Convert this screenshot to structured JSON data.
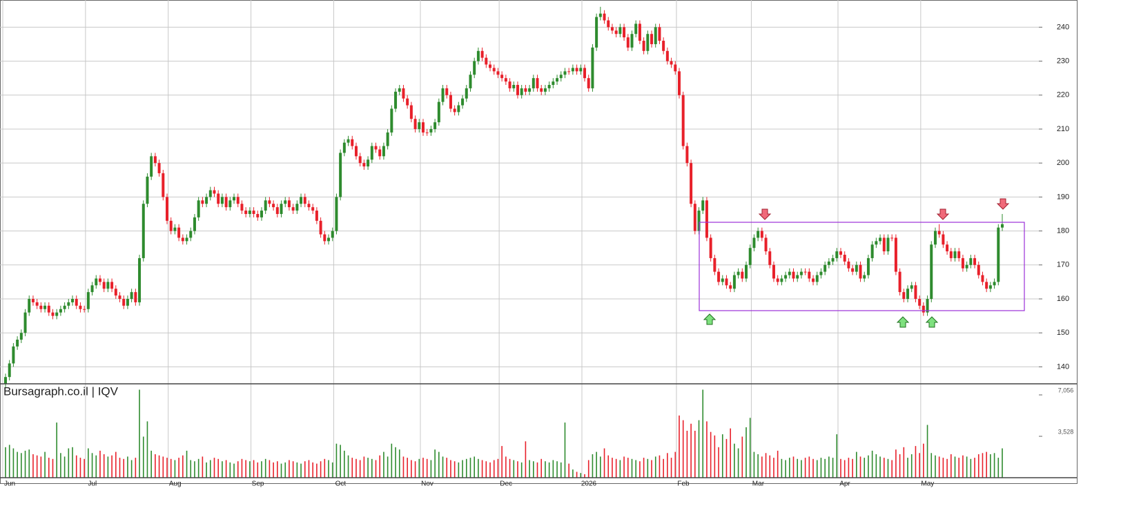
{
  "chart_data": {
    "type": "candlestick",
    "watermark": "Bursagraph.co.il | IQV",
    "ylim": [
      135,
      248
    ],
    "yticks": [
      140,
      150,
      160,
      170,
      180,
      190,
      200,
      210,
      220,
      230,
      240
    ],
    "volume_ylim": [
      0,
      8000
    ],
    "volume_ticks": [
      {
        "value": 3528,
        "label": "3,528"
      },
      {
        "value": 7056,
        "label": "7,056"
      }
    ],
    "xlim": [
      -1,
      262
    ],
    "xticks": [
      {
        "value": 0,
        "label": "Jun"
      },
      {
        "value": 21,
        "label": "Jul"
      },
      {
        "value": 42,
        "label": "Aug"
      },
      {
        "value": 63,
        "label": "Sep"
      },
      {
        "value": 84,
        "label": "Oct"
      },
      {
        "value": 106,
        "label": "Nov"
      },
      {
        "value": 126,
        "label": "Dec"
      },
      {
        "value": 147,
        "label": "2026"
      },
      {
        "value": 171,
        "label": "Feb"
      },
      {
        "value": 190,
        "label": "Mar"
      },
      {
        "value": 212,
        "label": "Apr"
      },
      {
        "value": 233,
        "label": "May"
      }
    ],
    "up_color": "#2e8b2e",
    "down_color": "#e8202a",
    "grid": true,
    "open": [
      135,
      137,
      141,
      146,
      148,
      150,
      156,
      160,
      159,
      158,
      157,
      158,
      156,
      155,
      156,
      157,
      158,
      159,
      160,
      158,
      157,
      157,
      162,
      164,
      166,
      165,
      163,
      165,
      163,
      161,
      160,
      158,
      160,
      162,
      159,
      172,
      188,
      196,
      202,
      200,
      197,
      190,
      183,
      180,
      181,
      178,
      177,
      178,
      180,
      184,
      189,
      188,
      190,
      192,
      191,
      188,
      190,
      187,
      189,
      190,
      188,
      186,
      185,
      186,
      185,
      184,
      186,
      189,
      188,
      187,
      185,
      188,
      189,
      187,
      186,
      188,
      190,
      188,
      187,
      186,
      183,
      179,
      177,
      178,
      180,
      190,
      203,
      206,
      207,
      205,
      202,
      200,
      199,
      201,
      205,
      204,
      202,
      205,
      209,
      216,
      221,
      222,
      219,
      217,
      213,
      210,
      212,
      209,
      209,
      210,
      212,
      218,
      222,
      220,
      216,
      215,
      217,
      219,
      222,
      226,
      230,
      233,
      231,
      229,
      228,
      227,
      226,
      225,
      224,
      222,
      223,
      220,
      222,
      221,
      222,
      225,
      222,
      221,
      222,
      223,
      224,
      225,
      226,
      227,
      227,
      228,
      227,
      228,
      225,
      222,
      234,
      243,
      244,
      242,
      240,
      239,
      238,
      240,
      237,
      234,
      238,
      241,
      236,
      233,
      238,
      235,
      240,
      236,
      233,
      230,
      229,
      227,
      220,
      205,
      200,
      188,
      180,
      186,
      189,
      178,
      172,
      168,
      165,
      166,
      164,
      163,
      167,
      168,
      166,
      170,
      175,
      178,
      180,
      178,
      174,
      170,
      166,
      165,
      166,
      167,
      168,
      166,
      167,
      168,
      168,
      166,
      165,
      167,
      168,
      170,
      171,
      172,
      174,
      173,
      171,
      169,
      168,
      170,
      166,
      167,
      172,
      176,
      177,
      178,
      174,
      178,
      178,
      168,
      162,
      160,
      163,
      164,
      160,
      158,
      156,
      160,
      176,
      180,
      179,
      176,
      174,
      172,
      174,
      172,
      169,
      170,
      172,
      170,
      167,
      165,
      163,
      164,
      165,
      181
    ],
    "high": [
      138,
      142,
      147,
      149,
      151,
      157,
      161,
      161,
      160,
      159,
      159,
      159,
      157,
      157,
      158,
      159,
      160,
      161,
      161,
      159,
      158,
      163,
      165,
      167,
      167,
      166,
      166,
      166,
      164,
      162,
      161,
      161,
      163,
      163,
      173,
      189,
      197,
      203,
      203,
      201,
      198,
      191,
      184,
      182,
      182,
      179,
      179,
      181,
      185,
      190,
      190,
      191,
      193,
      193,
      192,
      191,
      191,
      190,
      191,
      191,
      189,
      187,
      187,
      187,
      186,
      187,
      190,
      190,
      189,
      188,
      189,
      190,
      190,
      188,
      189,
      191,
      191,
      189,
      188,
      187,
      184,
      180,
      179,
      181,
      191,
      204,
      207,
      208,
      208,
      206,
      203,
      201,
      202,
      206,
      206,
      205,
      206,
      210,
      217,
      222,
      223,
      223,
      220,
      218,
      214,
      213,
      213,
      210,
      211,
      213,
      219,
      223,
      223,
      221,
      217,
      218,
      220,
      223,
      227,
      231,
      234,
      234,
      232,
      230,
      229,
      228,
      227,
      226,
      225,
      224,
      224,
      223,
      223,
      223,
      226,
      226,
      223,
      223,
      224,
      225,
      226,
      227,
      228,
      228,
      229,
      229,
      229,
      229,
      226,
      235,
      244,
      246,
      245,
      243,
      241,
      240,
      241,
      241,
      238,
      239,
      242,
      242,
      237,
      239,
      239,
      241,
      241,
      237,
      234,
      231,
      230,
      228,
      221,
      206,
      201,
      189,
      187,
      190,
      190,
      179,
      173,
      169,
      167,
      167,
      165,
      168,
      169,
      169,
      171,
      176,
      179,
      181,
      181,
      179,
      175,
      171,
      167,
      167,
      168,
      169,
      169,
      168,
      169,
      169,
      169,
      167,
      168,
      169,
      171,
      172,
      173,
      175,
      175,
      174,
      172,
      170,
      171,
      171,
      168,
      173,
      177,
      178,
      179,
      179,
      179,
      179,
      179,
      169,
      163,
      164,
      165,
      165,
      161,
      159,
      161,
      177,
      181,
      182,
      180,
      177,
      175,
      175,
      175,
      173,
      171,
      173,
      173,
      171,
      168,
      166,
      165,
      166,
      182,
      185
    ],
    "low": [
      134,
      136,
      140,
      145,
      147,
      149,
      155,
      158,
      157,
      156,
      156,
      155,
      154,
      154,
      155,
      156,
      157,
      158,
      157,
      156,
      156,
      156,
      161,
      163,
      164,
      162,
      162,
      162,
      160,
      159,
      157,
      157,
      159,
      158,
      158,
      171,
      187,
      195,
      199,
      196,
      189,
      182,
      179,
      179,
      177,
      176,
      176,
      177,
      179,
      183,
      187,
      187,
      189,
      190,
      187,
      187,
      186,
      186,
      188,
      187,
      185,
      184,
      184,
      184,
      183,
      183,
      185,
      187,
      186,
      184,
      184,
      187,
      186,
      185,
      185,
      187,
      187,
      186,
      185,
      182,
      178,
      176,
      176,
      177,
      179,
      189,
      202,
      205,
      204,
      201,
      199,
      198,
      198,
      200,
      203,
      201,
      201,
      204,
      208,
      215,
      220,
      218,
      216,
      212,
      209,
      209,
      208,
      208,
      208,
      209,
      211,
      217,
      219,
      215,
      214,
      214,
      216,
      218,
      221,
      225,
      229,
      230,
      228,
      227,
      226,
      225,
      224,
      223,
      221,
      221,
      219,
      219,
      220,
      220,
      221,
      221,
      220,
      220,
      221,
      222,
      223,
      224,
      225,
      226,
      226,
      226,
      226,
      224,
      221,
      221,
      233,
      242,
      241,
      239,
      238,
      237,
      237,
      236,
      233,
      233,
      237,
      235,
      232,
      232,
      234,
      234,
      235,
      232,
      229,
      228,
      226,
      219,
      204,
      199,
      187,
      179,
      179,
      185,
      177,
      171,
      167,
      164,
      164,
      163,
      162,
      162,
      166,
      165,
      165,
      169,
      174,
      177,
      177,
      173,
      169,
      165,
      164,
      164,
      165,
      166,
      165,
      165,
      166,
      167,
      165,
      164,
      164,
      166,
      167,
      169,
      170,
      171,
      172,
      170,
      168,
      167,
      167,
      165,
      165,
      166,
      171,
      175,
      176,
      173,
      173,
      177,
      167,
      161,
      159,
      159,
      162,
      159,
      157,
      155,
      155,
      159,
      175,
      178,
      175,
      173,
      171,
      171,
      171,
      168,
      168,
      169,
      169,
      166,
      164,
      162,
      162,
      163,
      164,
      180
    ],
    "close": [
      137,
      141,
      146,
      148,
      150,
      156,
      160,
      159,
      158,
      157,
      158,
      156,
      155,
      156,
      157,
      158,
      159,
      160,
      158,
      157,
      157,
      162,
      164,
      166,
      165,
      163,
      165,
      163,
      161,
      160,
      158,
      160,
      162,
      159,
      172,
      188,
      196,
      202,
      200,
      197,
      190,
      183,
      180,
      181,
      178,
      177,
      178,
      180,
      184,
      189,
      188,
      190,
      192,
      191,
      188,
      190,
      187,
      189,
      190,
      188,
      186,
      185,
      186,
      185,
      184,
      186,
      189,
      188,
      187,
      185,
      188,
      189,
      187,
      186,
      188,
      190,
      188,
      187,
      186,
      183,
      179,
      177,
      178,
      180,
      190,
      203,
      206,
      207,
      205,
      202,
      200,
      199,
      201,
      205,
      204,
      202,
      205,
      209,
      216,
      221,
      222,
      219,
      217,
      213,
      210,
      212,
      209,
      209,
      210,
      212,
      218,
      222,
      220,
      216,
      215,
      217,
      219,
      222,
      226,
      230,
      233,
      231,
      229,
      228,
      227,
      226,
      225,
      224,
      222,
      223,
      220,
      222,
      221,
      222,
      225,
      222,
      221,
      222,
      223,
      224,
      225,
      226,
      227,
      227,
      228,
      227,
      228,
      225,
      222,
      234,
      243,
      244,
      242,
      240,
      239,
      238,
      240,
      237,
      234,
      238,
      241,
      236,
      233,
      238,
      235,
      240,
      236,
      233,
      230,
      229,
      227,
      220,
      205,
      200,
      188,
      180,
      186,
      189,
      178,
      172,
      168,
      165,
      166,
      164,
      163,
      167,
      168,
      166,
      170,
      175,
      178,
      180,
      178,
      174,
      170,
      166,
      165,
      166,
      167,
      168,
      166,
      167,
      168,
      168,
      166,
      165,
      167,
      168,
      170,
      171,
      172,
      174,
      173,
      171,
      169,
      168,
      170,
      166,
      167,
      172,
      176,
      177,
      178,
      174,
      178,
      178,
      168,
      162,
      160,
      163,
      164,
      160,
      158,
      156,
      160,
      176,
      180,
      179,
      176,
      174,
      172,
      174,
      172,
      169,
      170,
      172,
      170,
      167,
      165,
      163,
      164,
      165,
      181,
      182
    ],
    "volume": [
      2600,
      2800,
      2500,
      2200,
      2100,
      2300,
      2400,
      2000,
      1900,
      1800,
      2200,
      1700,
      1600,
      4700,
      2100,
      1800,
      2500,
      2600,
      1900,
      1700,
      1600,
      2500,
      2100,
      1900,
      2300,
      2000,
      1800,
      1900,
      2200,
      1700,
      1600,
      1800,
      1500,
      1700,
      7500,
      3500,
      4800,
      2300,
      2000,
      1900,
      1800,
      1700,
      1600,
      1500,
      1700,
      1900,
      2300,
      1500,
      1400,
      1600,
      1800,
      1300,
      1500,
      1700,
      1600,
      1400,
      1500,
      1300,
      1200,
      1400,
      1600,
      1500,
      1400,
      1500,
      1300,
      1400,
      1600,
      1500,
      1300,
      1400,
      1200,
      1300,
      1500,
      1400,
      1300,
      1200,
      1400,
      1500,
      1300,
      1200,
      1400,
      1600,
      1500,
      1300,
      2900,
      2800,
      2300,
      1900,
      1700,
      1600,
      1500,
      1800,
      1700,
      1600,
      1500,
      1900,
      2200,
      1800,
      2900,
      2600,
      2400,
      1800,
      1700,
      1500,
      1400,
      1600,
      1700,
      1600,
      1500,
      2400,
      2200,
      1800,
      1700,
      1500,
      1400,
      1300,
      1500,
      1600,
      1700,
      1800,
      1600,
      1500,
      1400,
      1300,
      1500,
      1600,
      2700,
      1800,
      1600,
      1500,
      1400,
      1300,
      3100,
      1500,
      1400,
      1300,
      1600,
      1400,
      1300,
      1500,
      1400,
      1300,
      4700,
      1200,
      700,
      500,
      400,
      300,
      1500,
      2000,
      2200,
      1800,
      2500,
      1900,
      1700,
      1600,
      1500,
      1800,
      1700,
      1600,
      1500,
      1400,
      1700,
      1600,
      1500,
      1800,
      1900,
      1600,
      2100,
      1700,
      2200,
      5300,
      4900,
      4000,
      4600,
      4000,
      4900,
      7500,
      4800,
      3900,
      3600,
      2600,
      3700,
      3300,
      4200,
      2900,
      2500,
      3500,
      4300,
      5100,
      2200,
      2000,
      1800,
      2100,
      1900,
      1700,
      2300,
      1600,
      1500,
      1700,
      1800,
      1600,
      1500,
      1700,
      1800,
      1600,
      1500,
      1700,
      1600,
      1800,
      1700,
      3700,
      1600,
      1500,
      1700,
      1600,
      2200,
      1800,
      1700,
      1900,
      2300,
      2000,
      1800,
      1700,
      1600,
      1500,
      2400,
      2000,
      2600,
      1700,
      2000,
      2700,
      2100,
      2900,
      4500,
      2100,
      1900,
      1800,
      1700,
      1600,
      2000,
      1800,
      1700,
      1900,
      1800,
      1600,
      1700,
      2000,
      2100,
      2200,
      2000,
      2100,
      1700,
      2500
    ]
  }
}
